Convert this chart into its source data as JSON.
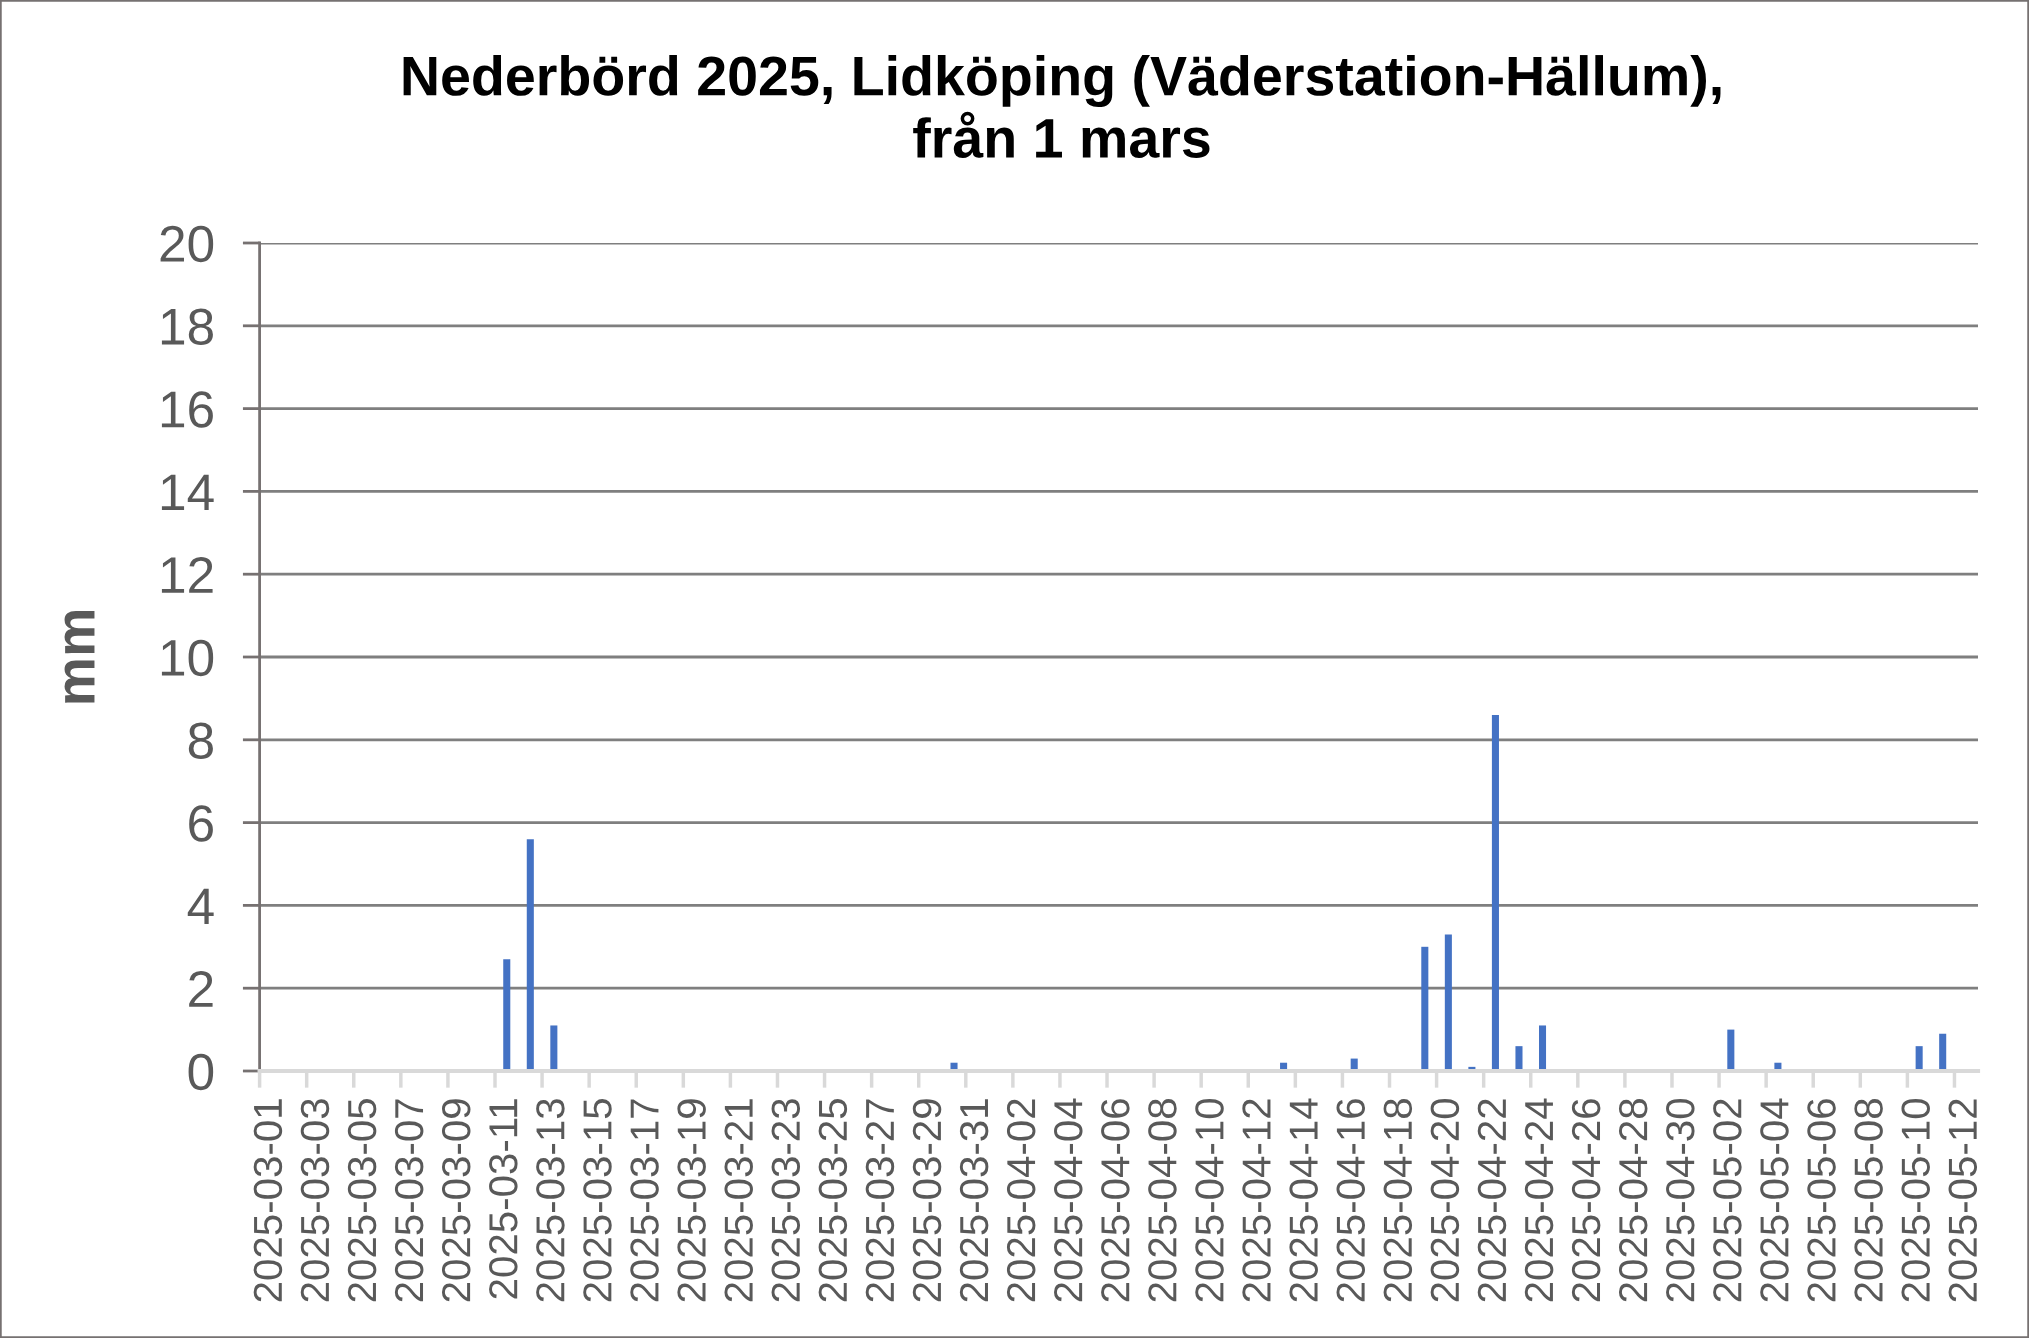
{
  "chart_data": {
    "type": "bar",
    "title": "Nederbörd 2025, Lidköping (Väderstation-Hällum),\nfrån 1 mars",
    "ylabel": "mm",
    "categories": [
      "2025-03-01",
      null,
      "2025-03-03",
      null,
      "2025-03-05",
      null,
      "2025-03-07",
      null,
      "2025-03-09",
      null,
      "2025-03-11",
      null,
      "2025-03-13",
      null,
      "2025-03-15",
      null,
      "2025-03-17",
      null,
      "2025-03-19",
      null,
      "2025-03-21",
      null,
      "2025-03-23",
      null,
      "2025-03-25",
      null,
      "2025-03-27",
      null,
      "2025-03-29",
      null,
      "2025-03-31",
      null,
      "2025-04-02",
      null,
      "2025-04-04",
      null,
      "2025-04-06",
      null,
      "2025-04-08",
      null,
      "2025-04-10",
      null,
      "2025-04-12",
      null,
      "2025-04-14",
      null,
      "2025-04-16",
      null,
      "2025-04-18",
      null,
      "2025-04-20",
      null,
      "2025-04-22",
      null,
      "2025-04-24",
      null,
      "2025-04-26",
      null,
      "2025-04-28",
      null,
      "2025-04-30",
      null,
      "2025-05-02",
      null,
      "2025-05-04",
      null,
      "2025-05-06",
      null,
      "2025-05-08",
      null,
      "2025-05-10",
      null,
      "2025-05-12"
    ],
    "values": [
      null,
      null,
      null,
      null,
      null,
      null,
      null,
      null,
      null,
      null,
      2.7,
      5.6,
      1.1,
      null,
      null,
      null,
      null,
      null,
      null,
      null,
      null,
      null,
      null,
      null,
      null,
      null,
      null,
      null,
      null,
      0.2,
      null,
      null,
      null,
      null,
      null,
      null,
      null,
      null,
      null,
      null,
      null,
      null,
      null,
      0.2,
      null,
      null,
      0.3,
      null,
      null,
      3.0,
      3.3,
      0.1,
      8.6,
      0.6,
      1.1,
      null,
      null,
      null,
      null,
      null,
      null,
      null,
      1.0,
      null,
      0.2,
      null,
      null,
      null,
      null,
      null,
      0.6,
      0.9,
      null
    ],
    "color": "#4472c4",
    "ylim": [
      0,
      20
    ],
    "yticks": [
      0,
      2,
      4,
      6,
      8,
      10,
      12,
      14,
      16,
      18,
      20
    ],
    "grid": "y"
  }
}
